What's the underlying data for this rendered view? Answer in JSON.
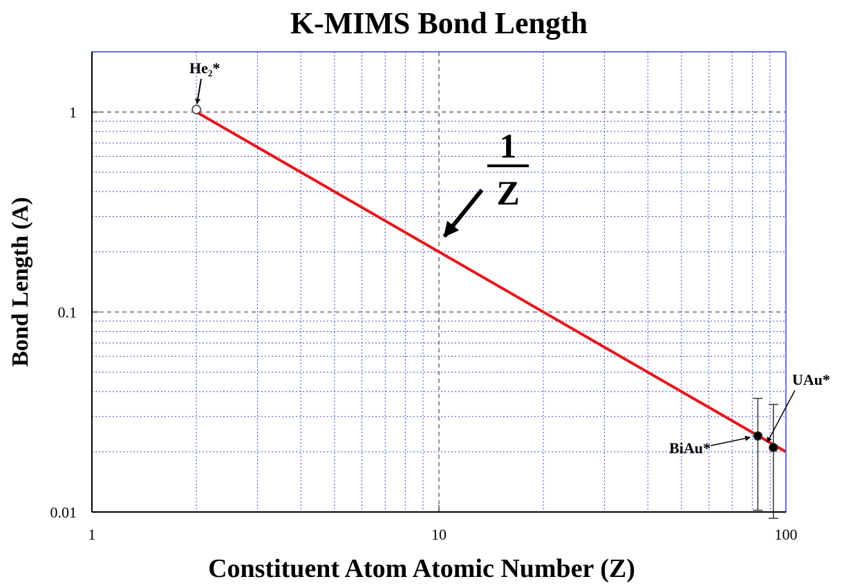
{
  "chart_data": {
    "type": "loglog",
    "title": "K-MIMS Bond Length",
    "x_label": "Constituent Atom Atomic Number (Z)",
    "y_label": "Bond Length (A)",
    "log_x": true,
    "log_y": true,
    "grid": true,
    "xlim": [
      1,
      100
    ],
    "ylim": [
      0.01,
      2
    ],
    "xticks": [
      1,
      10,
      100
    ],
    "yticks": [
      0.01,
      0.1,
      1
    ],
    "xminor": [
      2,
      3,
      4,
      5,
      6,
      7,
      8,
      9,
      20,
      30,
      40,
      50,
      60,
      70,
      80,
      90
    ],
    "yminor": [
      0.02,
      0.03,
      0.04,
      0.05,
      0.06,
      0.07,
      0.08,
      0.09,
      0.2,
      0.3,
      0.4,
      0.5,
      0.6,
      0.7,
      0.8,
      0.9,
      2
    ],
    "grid_color": "#3344dd",
    "line": {
      "x": [
        2,
        100
      ],
      "y": [
        1,
        0.02
      ],
      "color": "#e8141b"
    },
    "points": {
      "x": [
        2,
        83,
        92
      ],
      "y": [
        1.03,
        0.024,
        0.021
      ],
      "low": [
        null,
        0.0102,
        0.0093
      ],
      "high": [
        null,
        0.037,
        0.0345
      ],
      "fill": [
        "#ffffff",
        "#000000",
        "#000000"
      ]
    },
    "annotations": {
      "he2": "He₂*",
      "biau": "BiAu*",
      "uau": "UAu*",
      "numerator": "1",
      "denominator": "Z"
    }
  }
}
